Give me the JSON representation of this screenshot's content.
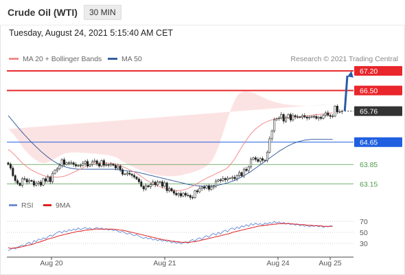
{
  "header": {
    "title": "Crude Oil (WTI)",
    "timeframe": "30 MIN"
  },
  "datetime": "Tuesday, August 24, 2021 5:15:40 AM CET",
  "legend": {
    "ma20_label": "MA 20 + Bollinger Bands",
    "ma50_label": "MA 50",
    "research": "Research © 2021 Trading Central"
  },
  "rsi_legend": {
    "rsi_label": "RSI",
    "ma_label": "9MA"
  },
  "colors": {
    "resistance": "#e8262b",
    "support": "#4f9a4a",
    "pivot": "#1f5fe0",
    "current": "#333333",
    "ma20": "#f28b8b",
    "ma50": "#355e9e",
    "bollinger": "#fcdede",
    "rsi": "#6f8fd8",
    "rsi_ma": "#e01e1e",
    "arrow": "#2a5aa8"
  },
  "chart_data": {
    "type": "candlestick",
    "price_axis": {
      "min": 62.6,
      "max": 67.4
    },
    "levels": [
      {
        "value": "67.20",
        "kind": "resistance"
      },
      {
        "value": "66.50",
        "kind": "resistance"
      },
      {
        "value": "65.76",
        "kind": "current"
      },
      {
        "value": "64.65",
        "kind": "pivot"
      },
      {
        "value": "63.85",
        "kind": "support"
      },
      {
        "value": "63.15",
        "kind": "support"
      }
    ],
    "x_ticks": [
      "Aug 20",
      "Aug 21",
      "Aug 24",
      "Aug 25"
    ],
    "close": [
      63.86,
      63.72,
      63.45,
      63.27,
      63.18,
      63.1,
      63.34,
      63.32,
      63.22,
      63.28,
      63.25,
      63.11,
      63.17,
      63.22,
      63.11,
      63.34,
      63.25,
      63.4,
      63.23,
      63.53,
      63.64,
      63.7,
      63.81,
      64.02,
      63.85,
      63.91,
      63.89,
      63.91,
      63.85,
      63.8,
      63.81,
      63.82,
      63.89,
      63.96,
      63.79,
      63.85,
      63.95,
      63.98,
      63.88,
      63.79,
      63.99,
      63.82,
      63.84,
      63.83,
      63.86,
      63.82,
      63.72,
      63.79,
      63.66,
      63.5,
      63.51,
      63.54,
      63.5,
      63.46,
      63.4,
      63.33,
      63.23,
      63.07,
      62.97,
      63.09,
      63.05,
      63.13,
      63.22,
      63.12,
      63.22,
      63.23,
      63.07,
      63.19,
      62.91,
      62.99,
      62.9,
      62.82,
      62.76,
      62.81,
      62.72,
      62.82,
      62.75,
      62.74,
      62.67,
      62.66,
      62.91,
      62.87,
      62.99,
      63.04,
      63.0,
      63.09,
      62.96,
      63.04,
      63.07,
      63.25,
      63.3,
      63.27,
      63.35,
      63.3,
      63.36,
      63.36,
      63.39,
      63.34,
      63.45,
      63.56,
      63.44,
      63.68,
      63.63,
      63.76,
      64.03,
      64.09,
      64.03,
      63.96,
      64.06,
      64.0,
      64.0,
      64.29,
      64.77,
      65.05,
      65.45,
      65.49,
      65.51,
      65.64,
      65.4,
      65.52,
      65.64,
      65.44,
      65.6,
      65.56,
      65.55,
      65.54,
      65.6,
      65.55,
      65.51,
      65.54,
      65.57,
      65.57,
      65.5,
      65.54,
      65.5,
      65.61,
      65.7,
      65.61,
      65.57,
      65.58,
      65.94,
      65.73,
      65.74,
      65.76
    ],
    "ma20": [
      64.39,
      64.33,
      64.25,
      64.17,
      64.08,
      63.99,
      63.9,
      63.83,
      63.77,
      63.7,
      63.65,
      63.61,
      63.57,
      63.52,
      63.49,
      63.46,
      63.43,
      63.42,
      63.41,
      63.4,
      63.4,
      63.39,
      63.4,
      63.42,
      63.43,
      63.46,
      63.49,
      63.53,
      63.57,
      63.61,
      63.65,
      63.69,
      63.73,
      63.77,
      63.8,
      63.83,
      63.85,
      63.87,
      63.88,
      63.89,
      63.89,
      63.9,
      63.9,
      63.9,
      63.89,
      63.88,
      63.86,
      63.85,
      63.82,
      63.78,
      63.74,
      63.7,
      63.66,
      63.62,
      63.58,
      63.53,
      63.48,
      63.42,
      63.36,
      63.3,
      63.25,
      63.2,
      63.16,
      63.12,
      63.09,
      63.05,
      63.03,
      62.99,
      62.97,
      62.95,
      62.94,
      62.93,
      62.92,
      62.91,
      62.92,
      62.94,
      62.96,
      62.99,
      63.03,
      63.07,
      63.12,
      63.17,
      63.22,
      63.27,
      63.31,
      63.36,
      63.4,
      63.44,
      63.48,
      63.52,
      63.56,
      63.6,
      63.64,
      63.68,
      63.74,
      63.83,
      63.93,
      64.05,
      64.19,
      64.33,
      64.47,
      64.6,
      64.72,
      64.84,
      64.95,
      65.04,
      65.12,
      65.19,
      65.25,
      65.31,
      65.35,
      65.39,
      65.42,
      65.45,
      65.47,
      65.49,
      65.5,
      65.51,
      65.52,
      65.52,
      65.53,
      65.54,
      65.54,
      65.55,
      65.55,
      65.56,
      65.57,
      65.58,
      65.59,
      65.6,
      65.61,
      65.62,
      65.63,
      65.64,
      65.65,
      65.66,
      65.67,
      65.68,
      65.69,
      65.7
    ],
    "bb_upper": [
      65.12,
      65.04,
      64.95,
      64.85,
      64.74,
      64.62,
      64.49,
      64.38,
      64.29,
      64.2,
      64.12,
      64.06,
      64.0,
      63.95,
      63.91,
      63.9,
      63.9,
      63.93,
      63.96,
      64.01,
      64.06,
      64.11,
      64.16,
      64.2,
      64.24,
      64.26,
      64.27,
      64.28,
      64.28,
      64.28,
      64.28,
      64.27,
      64.27,
      64.26,
      64.26,
      64.25,
      64.24,
      64.24,
      64.23,
      64.22,
      64.21,
      64.2,
      64.19,
      64.18,
      64.16,
      64.14,
      64.11,
      64.07,
      64.02,
      63.96,
      63.91,
      63.86,
      63.82,
      63.78,
      63.74,
      63.7,
      63.67,
      63.64,
      63.6,
      63.57,
      63.55,
      63.52,
      63.5,
      63.48,
      63.47,
      63.45,
      63.45,
      63.44,
      63.43,
      63.43,
      63.43,
      63.43,
      63.44,
      63.45,
      63.46,
      63.48,
      63.5,
      63.52,
      63.54,
      63.57,
      63.6,
      63.63,
      63.66,
      63.7,
      63.74,
      63.8,
      63.87,
      63.96,
      64.09,
      64.26,
      64.46,
      64.71,
      64.97,
      65.24,
      65.49,
      65.73,
      65.95,
      66.14,
      66.29,
      66.39,
      66.44,
      66.47,
      66.47,
      66.46,
      66.44,
      66.41,
      66.38,
      66.34,
      66.3,
      66.26,
      66.22,
      66.18,
      66.15,
      66.12,
      66.09,
      66.07,
      66.05,
      66.03,
      66.01,
      66.0,
      65.99,
      65.98,
      65.97,
      65.96,
      65.96,
      65.95,
      65.95,
      65.95,
      65.95,
      65.95,
      65.95,
      65.96,
      65.96,
      65.97,
      65.97,
      65.98,
      65.99,
      66.0,
      66.01,
      66.02
    ],
    "bb_lower": [
      63.65,
      63.61,
      63.56,
      63.5,
      63.43,
      63.35,
      63.27,
      63.2,
      63.12,
      63.06,
      63.0,
      62.95,
      62.91,
      62.88,
      62.86,
      62.85,
      62.85,
      62.86,
      62.87,
      62.88,
      62.9,
      62.92,
      62.94,
      62.96,
      62.99,
      63.02,
      63.07,
      63.13,
      63.2,
      63.28,
      63.35,
      63.43,
      63.5,
      63.56,
      63.61,
      63.65,
      63.67,
      63.68,
      63.68,
      63.67,
      63.65,
      63.63,
      63.6,
      63.56,
      63.52,
      63.48,
      63.43,
      63.38,
      63.32,
      63.26,
      63.19,
      63.12,
      63.05,
      62.97,
      62.89,
      62.81,
      62.73,
      62.65,
      62.58,
      62.51,
      62.45,
      62.4,
      62.36,
      62.33,
      62.3,
      62.29,
      62.28,
      62.28,
      62.29,
      62.3,
      62.31,
      62.33,
      62.35,
      62.37,
      62.39,
      62.41,
      62.43,
      62.45,
      62.47,
      62.49,
      62.51,
      62.53,
      62.55,
      62.57,
      62.59,
      62.61,
      62.63,
      62.65,
      62.68,
      62.71,
      62.74,
      62.78,
      62.83,
      62.88,
      62.94,
      63.01,
      63.09,
      63.18,
      63.28,
      63.39,
      63.5,
      63.62,
      63.74,
      63.86,
      63.98,
      64.1,
      64.22,
      64.33,
      64.44,
      64.54,
      64.63,
      64.72,
      64.8,
      64.87,
      64.93,
      64.98,
      65.02,
      65.06,
      65.09,
      65.12,
      65.14,
      65.16,
      65.18,
      65.2,
      65.21,
      65.23,
      65.24,
      65.25,
      65.26,
      65.27,
      65.28,
      65.29,
      65.3,
      65.31,
      65.32,
      65.33,
      65.34,
      65.35,
      65.36,
      65.37
    ],
    "ma50": [
      65.6,
      65.5,
      65.4,
      65.3,
      65.2,
      65.1,
      65.0,
      64.91,
      64.82,
      64.73,
      64.64,
      64.56,
      64.48,
      64.4,
      64.32,
      64.25,
      64.18,
      64.11,
      64.05,
      63.99,
      63.94,
      63.89,
      63.85,
      63.81,
      63.78,
      63.75,
      63.73,
      63.71,
      63.7,
      63.69,
      63.68,
      63.68,
      63.68,
      63.68,
      63.68,
      63.68,
      63.68,
      63.68,
      63.68,
      63.68,
      63.68,
      63.68,
      63.68,
      63.68,
      63.68,
      63.68,
      63.67,
      63.66,
      63.65,
      63.64,
      63.63,
      63.62,
      63.61,
      63.6,
      63.59,
      63.58,
      63.56,
      63.54,
      63.52,
      63.5,
      63.48,
      63.46,
      63.44,
      63.42,
      63.4,
      63.38,
      63.36,
      63.34,
      63.32,
      63.3,
      63.28,
      63.26,
      63.24,
      63.22,
      63.2,
      63.18,
      63.16,
      63.14,
      63.12,
      63.11,
      63.1,
      63.09,
      63.08,
      63.07,
      63.07,
      63.07,
      63.07,
      63.08,
      63.09,
      63.1,
      63.11,
      63.13,
      63.15,
      63.17,
      63.19,
      63.22,
      63.25,
      63.28,
      63.32,
      63.36,
      63.4,
      63.45,
      63.5,
      63.55,
      63.6,
      63.66,
      63.72,
      63.78,
      63.84,
      63.9,
      63.96,
      64.02,
      64.08,
      64.14,
      64.2,
      64.26,
      64.32,
      64.37,
      64.42,
      64.47,
      64.52,
      64.56,
      64.6,
      64.63,
      64.66,
      64.68,
      64.7,
      64.72,
      64.73,
      64.74,
      64.75,
      64.75,
      64.75,
      64.75,
      64.75,
      64.75,
      64.75,
      64.75,
      64.75,
      64.75
    ],
    "rsi_axis": {
      "min": 10,
      "max": 75,
      "ticks": [
        "70",
        "50",
        "30"
      ]
    },
    "rsi": [
      17,
      19,
      22,
      20,
      23,
      25,
      27,
      25,
      30,
      32,
      28,
      35,
      33,
      38,
      36,
      40,
      38,
      42,
      45,
      43,
      47,
      50,
      52,
      49,
      53,
      51,
      55,
      53,
      56,
      54,
      58,
      55,
      57,
      59,
      56,
      58,
      55,
      57,
      59,
      56,
      58,
      55,
      57,
      54,
      56,
      53,
      55,
      52,
      50,
      52,
      49,
      47,
      49,
      46,
      44,
      46,
      43,
      41,
      39,
      41,
      38,
      40,
      36,
      38,
      35,
      37,
      34,
      36,
      33,
      35,
      31,
      33,
      30,
      32,
      29,
      31,
      33,
      30,
      35,
      37,
      34,
      38,
      40,
      37,
      42,
      44,
      41,
      46,
      48,
      45,
      50,
      47,
      52,
      54,
      51,
      56,
      58,
      55,
      60,
      57,
      62,
      60,
      64,
      61,
      66,
      63,
      67,
      64,
      66,
      63,
      67,
      65,
      68,
      66,
      70,
      67,
      69,
      66,
      68,
      65,
      67,
      64,
      66,
      63,
      65,
      62,
      64,
      61,
      63,
      60,
      62,
      61,
      63,
      60,
      62,
      59,
      61,
      60,
      62,
      61
    ],
    "rsi_ma": [
      22,
      21,
      21,
      22,
      22,
      23,
      24,
      25,
      26,
      27,
      28,
      29,
      31,
      32,
      33,
      35,
      36,
      38,
      39,
      40,
      41,
      43,
      44,
      45,
      46,
      47,
      48,
      49,
      50,
      51,
      52,
      52,
      53,
      54,
      54,
      55,
      55,
      56,
      56,
      56,
      56,
      56,
      56,
      56,
      56,
      56,
      55,
      55,
      54,
      54,
      53,
      52,
      51,
      50,
      49,
      48,
      47,
      46,
      45,
      44,
      43,
      42,
      41,
      40,
      39,
      38,
      37,
      36,
      36,
      35,
      34,
      34,
      33,
      33,
      32,
      32,
      32,
      32,
      32,
      33,
      33,
      34,
      35,
      36,
      37,
      38,
      39,
      40,
      41,
      42,
      43,
      44,
      45,
      46,
      47,
      48,
      50,
      51,
      52,
      53,
      54,
      55,
      56,
      57,
      58,
      59,
      60,
      61,
      62,
      62,
      63,
      63,
      64,
      64,
      65,
      65,
      66,
      66,
      66,
      66,
      66,
      66,
      65,
      65,
      65,
      64,
      64,
      64,
      63,
      63,
      63,
      62,
      62,
      62,
      62,
      61,
      61,
      61,
      61,
      61
    ]
  }
}
